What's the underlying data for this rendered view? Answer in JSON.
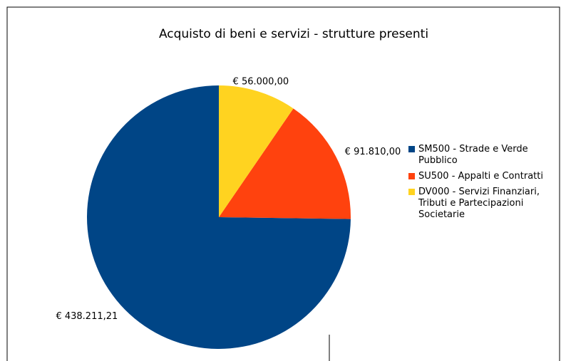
{
  "chart_data": {
    "type": "pie",
    "title": "Acquisto di beni e servizi - strutture presenti",
    "categories": [
      "SM500 - Strade e Verde Pubblico",
      "SU500 - Appalti e Contratti",
      "DV000 - Servizi Finanziari, Tributi e Partecipazioni Societarie"
    ],
    "values": [
      438211.21,
      91810,
      56000
    ],
    "value_labels": [
      "€ 438.211,21",
      "€ 91.810,00",
      "€ 56.000,00"
    ],
    "colors": [
      "#004586",
      "#ff420e",
      "#ffd320"
    ],
    "legend": "right"
  }
}
